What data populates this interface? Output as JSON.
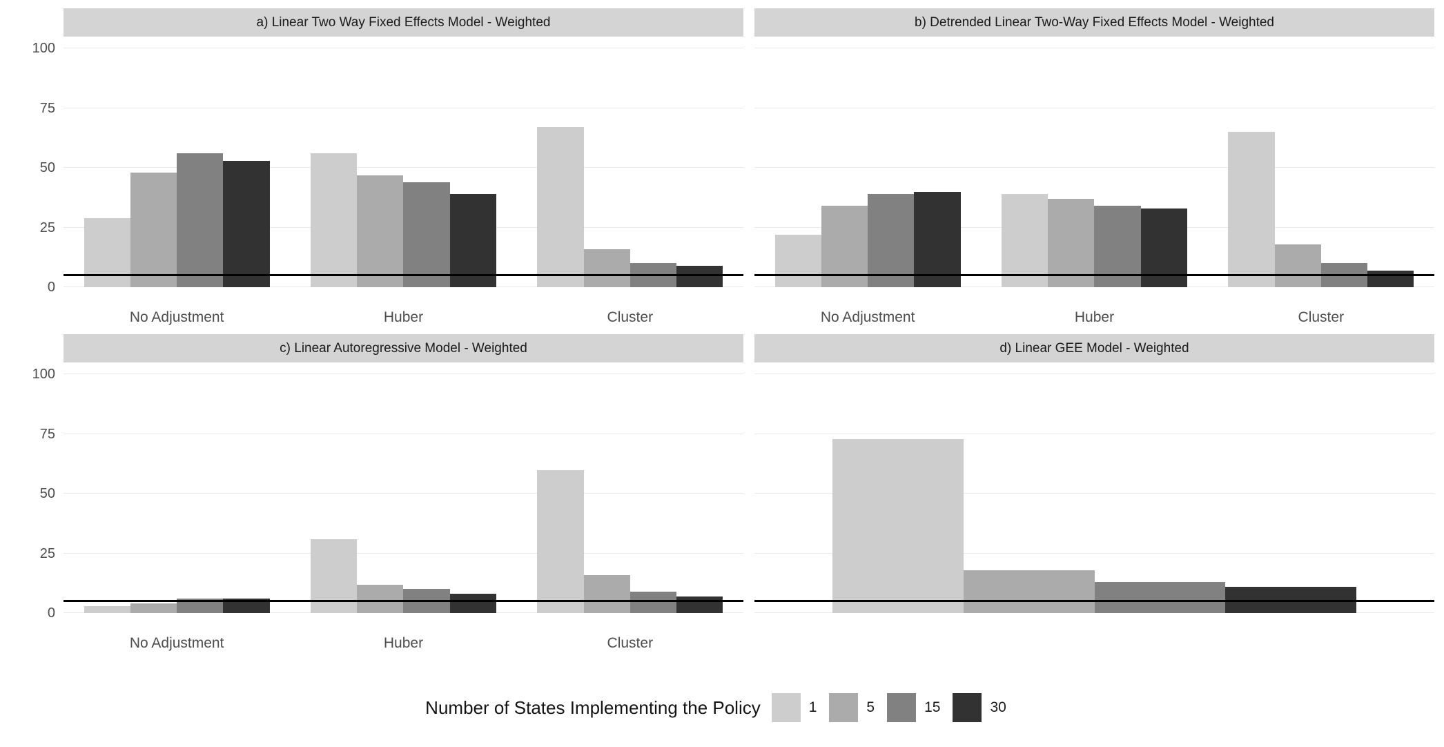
{
  "figure": {
    "background": "#ffffff"
  },
  "colors": {
    "strip_background": "#d4d4d4",
    "strip_text": "#1a1a1a",
    "gridline": "#e9e9e9",
    "axis_text": "#4d4d4d",
    "reference_line": "#000000"
  },
  "legend": {
    "title": "Number of States Implementing the Policy",
    "entries": [
      {
        "label": "1",
        "color": "#cdcdcd"
      },
      {
        "label": "5",
        "color": "#ababab"
      },
      {
        "label": "15",
        "color": "#818181"
      },
      {
        "label": "30",
        "color": "#323232"
      }
    ]
  },
  "chart_data": {
    "type": "bar",
    "layout": "2x2 facet grid, dodged bars",
    "y_axis": {
      "ticks": [
        0,
        25,
        50,
        75,
        100
      ],
      "range": [
        0,
        105
      ],
      "label": ""
    },
    "x_axis_categories": [
      "No Adjustment",
      "Huber",
      "Cluster"
    ],
    "reference_line": {
      "value": 5,
      "color": "#000000"
    },
    "series_labels": [
      "1",
      "5",
      "15",
      "30"
    ],
    "series_colors": [
      "#cdcdcd",
      "#ababab",
      "#818181",
      "#323232"
    ],
    "grid": true,
    "legend_position": "bottom",
    "panels": [
      {
        "title": "a) Linear Two Way Fixed Effects Model - Weighted",
        "categories": [
          "No Adjustment",
          "Huber",
          "Cluster"
        ],
        "show_x_labels": true,
        "show_y_axis": true,
        "series": [
          {
            "name": "1",
            "values": [
              29,
              56,
              67
            ]
          },
          {
            "name": "5",
            "values": [
              48,
              47,
              16
            ]
          },
          {
            "name": "15",
            "values": [
              56,
              44,
              10
            ]
          },
          {
            "name": "30",
            "values": [
              53,
              39,
              9
            ]
          }
        ]
      },
      {
        "title": "b) Detrended Linear Two-Way Fixed Effects Model - Weighted",
        "categories": [
          "No Adjustment",
          "Huber",
          "Cluster"
        ],
        "show_x_labels": true,
        "show_y_axis": false,
        "series": [
          {
            "name": "1",
            "values": [
              22,
              39,
              65
            ]
          },
          {
            "name": "5",
            "values": [
              34,
              37,
              18
            ]
          },
          {
            "name": "15",
            "values": [
              39,
              34,
              10
            ]
          },
          {
            "name": "30",
            "values": [
              40,
              33,
              7
            ]
          }
        ]
      },
      {
        "title": "c) Linear Autoregressive Model - Weighted",
        "categories": [
          "No Adjustment",
          "Huber",
          "Cluster"
        ],
        "show_x_labels": true,
        "show_y_axis": true,
        "series": [
          {
            "name": "1",
            "values": [
              3,
              31,
              60
            ]
          },
          {
            "name": "5",
            "values": [
              4,
              12,
              16
            ]
          },
          {
            "name": "15",
            "values": [
              6,
              10,
              9
            ]
          },
          {
            "name": "30",
            "values": [
              6,
              8,
              7
            ]
          }
        ]
      },
      {
        "title": "d) Linear GEE Model - Weighted",
        "categories": [
          ""
        ],
        "show_x_labels": false,
        "show_y_axis": false,
        "series": [
          {
            "name": "1",
            "values": [
              73
            ]
          },
          {
            "name": "5",
            "values": [
              18
            ]
          },
          {
            "name": "15",
            "values": [
              13
            ]
          },
          {
            "name": "30",
            "values": [
              11
            ]
          }
        ]
      }
    ]
  }
}
